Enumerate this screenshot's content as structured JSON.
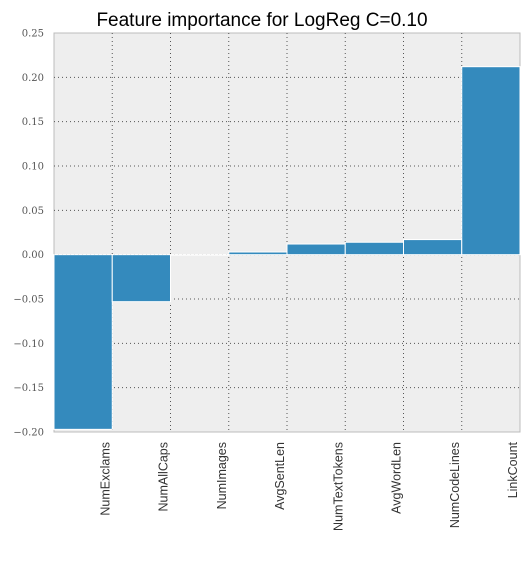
{
  "chart_data": {
    "type": "bar",
    "title": "Feature importance for LogReg C=0.10",
    "xlabel": "",
    "ylabel": "",
    "categories": [
      "NumExclams",
      "NumAllCaps",
      "NumImages",
      "AvgSentLen",
      "NumTextTokens",
      "AvgWordLen",
      "NumCodeLines",
      "LinkCount"
    ],
    "values": [
      -0.197,
      -0.053,
      0.0,
      0.003,
      0.012,
      0.014,
      0.017,
      0.212
    ],
    "ylim": [
      -0.2,
      0.25
    ],
    "yticks": [
      "0.25",
      "0.20",
      "0.15",
      "0.10",
      "0.05",
      "0.00",
      "−0.05",
      "−0.10",
      "−0.15",
      "−0.20"
    ],
    "ytick_values": [
      0.25,
      0.2,
      0.15,
      0.1,
      0.05,
      0.0,
      -0.05,
      -0.1,
      -0.15,
      -0.2
    ],
    "grid": true,
    "bar_color": "#348abd",
    "background_color": "#eeeeee"
  }
}
